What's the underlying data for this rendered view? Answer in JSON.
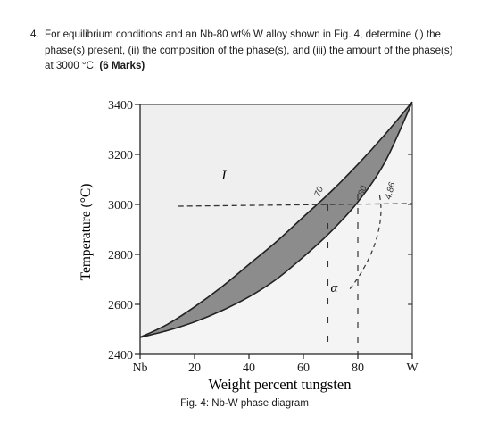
{
  "question": {
    "number": "4.",
    "text": "For equilibrium conditions and an Nb-80 wt% W alloy shown in Fig. 4, determine (i) the phase(s) present, (ii) the composition of the phase(s), and (iii) the amount of the phase(s) at 3000 °C.",
    "marks": "(6 Marks)"
  },
  "figure": {
    "caption": "Fig. 4: Nb-W phase diagram",
    "handwritten": [
      "70",
      "80",
      "4.86"
    ]
  },
  "chart_data": {
    "type": "phase_diagram",
    "xlabel": "Weight percent tungsten",
    "ylabel": "Temperature (°C)",
    "x_ticks": [
      "Nb",
      "20",
      "40",
      "60",
      "80",
      "W"
    ],
    "x_tick_values": [
      0,
      20,
      40,
      60,
      80,
      100
    ],
    "y_ticks": [
      2400,
      2600,
      2800,
      3000,
      3200,
      3400
    ],
    "xlim": [
      0,
      100
    ],
    "ylim": [
      2400,
      3400
    ],
    "region_labels": [
      "L",
      "α"
    ],
    "melting_points": {
      "Nb": 2468,
      "W": 3410
    },
    "liquidus": [
      [
        0,
        2468
      ],
      [
        10,
        2520
      ],
      [
        20,
        2590
      ],
      [
        30,
        2670
      ],
      [
        40,
        2760
      ],
      [
        50,
        2850
      ],
      [
        60,
        2950
      ],
      [
        70,
        3050
      ],
      [
        80,
        3160
      ],
      [
        90,
        3280
      ],
      [
        100,
        3410
      ]
    ],
    "solidus": [
      [
        0,
        2468
      ],
      [
        10,
        2495
      ],
      [
        20,
        2530
      ],
      [
        30,
        2575
      ],
      [
        40,
        2630
      ],
      [
        50,
        2700
      ],
      [
        60,
        2790
      ],
      [
        70,
        2890
      ],
      [
        80,
        3010
      ],
      [
        90,
        3170
      ],
      [
        100,
        3410
      ]
    ],
    "tie_line": {
      "temperature": 3000,
      "x_from": 14,
      "x_to": 100
    }
  },
  "colors": {
    "two_phase": "#8c8c8c",
    "outline": "#222222",
    "liquid_bg": "#efefef",
    "solid_bg": "#f4f4f4",
    "dash": "#333333"
  }
}
